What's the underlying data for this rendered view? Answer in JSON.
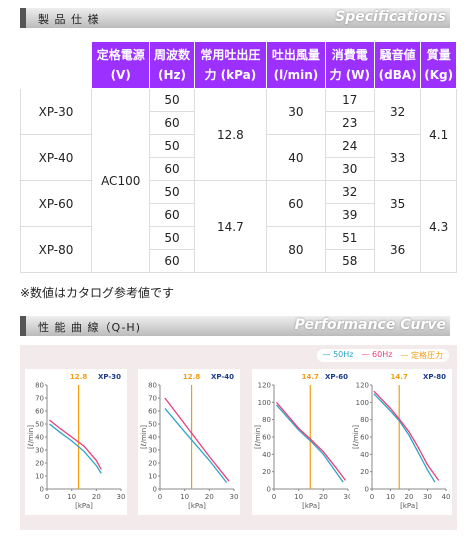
{
  "sections": [
    {
      "title": "製 品 仕 様",
      "subtitle": "Specifications"
    },
    {
      "title": "性 能 曲 線（Q-H)",
      "subtitle": "Performance Curve"
    }
  ],
  "table": {
    "header": [
      [
        "定格電源",
        "(V)"
      ],
      [
        "周波数",
        "(Hz)"
      ],
      [
        "常用吐出圧",
        "力 (kPa)"
      ],
      [
        "吐出風量",
        "(l/min)"
      ],
      [
        "消費電",
        "力 (W)"
      ],
      [
        "騒音値",
        "(dBA)"
      ],
      [
        "質量",
        "(Kg)"
      ]
    ],
    "models": [
      "XP-30",
      "XP-40",
      "XP-60",
      "XP-80"
    ],
    "power": "AC100",
    "freq": [
      50,
      60
    ],
    "pressure": [
      12.8,
      14.7
    ],
    "flow": [
      30,
      40,
      60,
      80
    ],
    "watts": [
      [
        17,
        23
      ],
      [
        24,
        30
      ],
      [
        32,
        39
      ],
      [
        51,
        58
      ]
    ],
    "noise": [
      32,
      33,
      35,
      36
    ],
    "mass": [
      4.1,
      4.3
    ]
  },
  "note": "※数値はカタログ参考値です",
  "legend_rated": "定格圧力",
  "chart_data": [
    {
      "type": "line",
      "title": "XP-30",
      "rated_pressure": 12.8,
      "xlabel": "[kPa]",
      "ylabel": "[ℓ/min]",
      "xlim": [
        0,
        30
      ],
      "xticks": [
        0,
        10,
        20,
        30
      ],
      "ylim": [
        0,
        80
      ],
      "yticks": [
        0,
        10,
        20,
        30,
        40,
        50,
        60,
        70,
        80
      ],
      "series": [
        {
          "name": "50Hz",
          "color": "#2fa3c8",
          "x": [
            1,
            5,
            10,
            15,
            20,
            22
          ],
          "values": [
            50,
            44,
            37,
            29,
            18,
            12
          ]
        },
        {
          "name": "60Hz",
          "color": "#e8407a",
          "x": [
            1,
            5,
            10,
            15,
            20,
            22
          ],
          "values": [
            53,
            47,
            40,
            33,
            22,
            15
          ]
        }
      ]
    },
    {
      "type": "line",
      "title": "XP-40",
      "rated_pressure": 12.8,
      "xlabel": "[kPa]",
      "ylabel": "[ℓ/min]",
      "xlim": [
        0,
        30
      ],
      "xticks": [
        0,
        10,
        20,
        30
      ],
      "ylim": [
        0,
        80
      ],
      "yticks": [
        0,
        10,
        20,
        30,
        40,
        50,
        60,
        70,
        80
      ],
      "series": [
        {
          "name": "50Hz",
          "color": "#2fa3c8",
          "x": [
            2,
            10,
            20,
            27
          ],
          "values": [
            62,
            44,
            22,
            5
          ]
        },
        {
          "name": "60Hz",
          "color": "#e8407a",
          "x": [
            2,
            10,
            20,
            28
          ],
          "values": [
            70,
            50,
            25,
            6
          ]
        }
      ]
    },
    {
      "type": "line",
      "title": "XP-60",
      "rated_pressure": 14.7,
      "xlabel": "[kPa]",
      "ylabel": "[ℓ/min]",
      "xlim": [
        0,
        30
      ],
      "xticks": [
        0,
        10,
        20,
        30
      ],
      "ylim": [
        0,
        120
      ],
      "yticks": [
        0,
        20,
        40,
        60,
        80,
        100,
        120
      ],
      "series": [
        {
          "name": "50Hz",
          "color": "#2fa3c8",
          "x": [
            1,
            10,
            15,
            20,
            25,
            28
          ],
          "values": [
            97,
            68,
            55,
            40,
            20,
            8
          ]
        },
        {
          "name": "60Hz",
          "color": "#e8407a",
          "x": [
            1,
            10,
            15,
            20,
            25,
            29
          ],
          "values": [
            100,
            70,
            57,
            43,
            25,
            10
          ]
        }
      ]
    },
    {
      "type": "line",
      "title": "XP-80",
      "rated_pressure": 14.7,
      "xlabel": "[kPa]",
      "ylabel": "[ℓ/min]",
      "xlim": [
        0,
        40
      ],
      "xticks": [
        0,
        10,
        20,
        30,
        40
      ],
      "ylim": [
        0,
        120
      ],
      "yticks": [
        0,
        20,
        40,
        60,
        80,
        100,
        120
      ],
      "series": [
        {
          "name": "50Hz",
          "color": "#2fa3c8",
          "x": [
            1,
            10,
            15,
            20,
            25,
            30,
            34
          ],
          "values": [
            110,
            90,
            78,
            62,
            42,
            22,
            8
          ]
        },
        {
          "name": "60Hz",
          "color": "#e8407a",
          "x": [
            1,
            10,
            15,
            20,
            25,
            30,
            36
          ],
          "values": [
            113,
            93,
            80,
            66,
            48,
            28,
            10
          ]
        }
      ]
    }
  ]
}
